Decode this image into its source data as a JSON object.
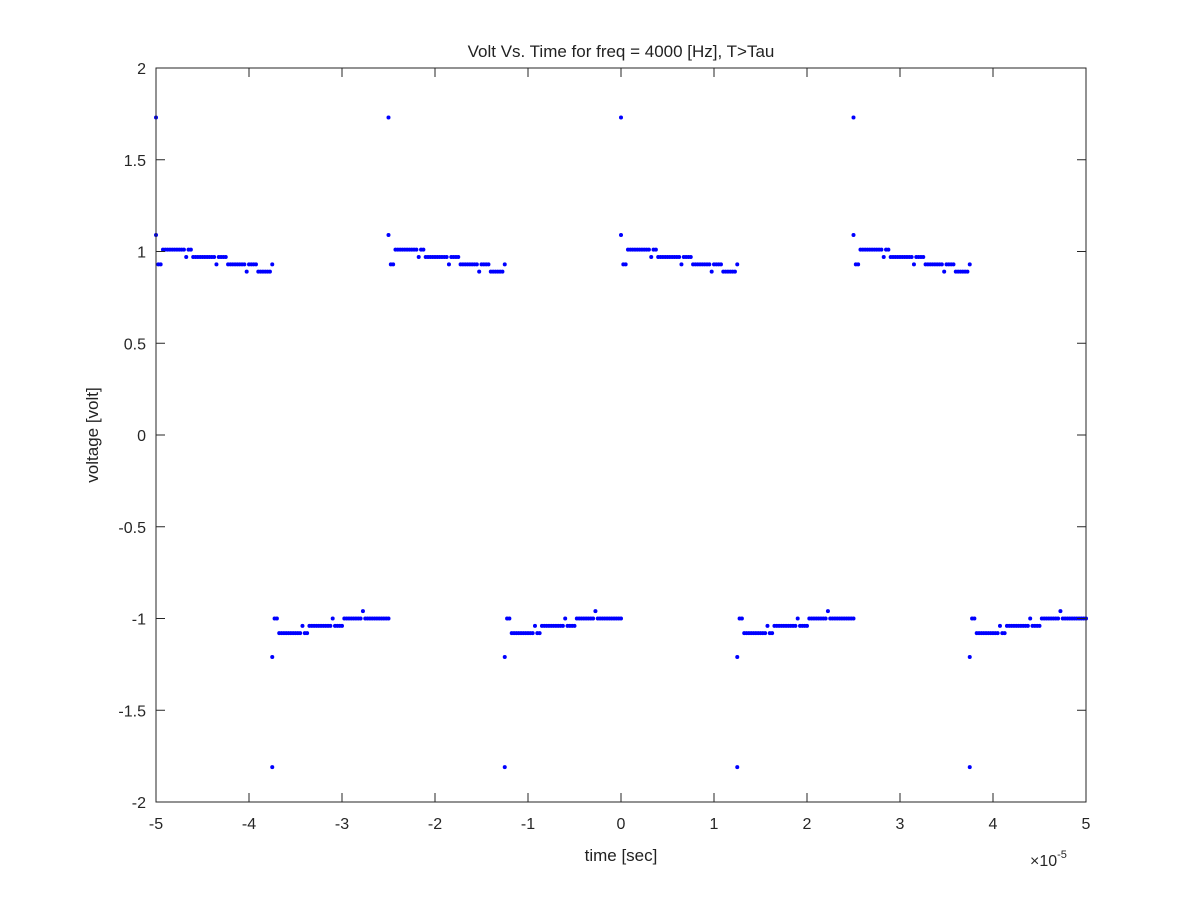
{
  "chart_data": {
    "type": "scatter",
    "title": "Volt Vs. Time for freq = 4000 [Hz], T>Tau",
    "xlabel": "time [sec]",
    "ylabel": "voltage [volt]",
    "x_multiplier_base": "×10",
    "x_multiplier_exp": "-5",
    "xlim": [
      -5e-05,
      5e-05
    ],
    "ylim": [
      -2,
      2
    ],
    "xticks": [
      -5,
      -4,
      -3,
      -2,
      -1,
      0,
      1,
      2,
      3,
      4,
      5
    ],
    "yticks": [
      2,
      1.5,
      1,
      0.5,
      0,
      -0.5,
      -1,
      -1.5,
      -2
    ],
    "xtick_labels": [
      "-5",
      "-4",
      "-3",
      "-2",
      "-1",
      "0",
      "1",
      "2",
      "3",
      "4",
      "5"
    ],
    "ytick_labels": [
      "2",
      "1.5",
      "1",
      "0.5",
      "0",
      "-0.5",
      "-1",
      "-1.5",
      "-2"
    ],
    "grid": false,
    "marker_color": "#0000ff",
    "period": 2.5e-05,
    "half_period": 1.25e-05,
    "high_half_cycle_profile": [
      [
        0.0,
        1.73
      ],
      [
        0.0,
        1.09
      ],
      [
        0.05,
        1.01
      ],
      [
        0.3,
        1.01
      ],
      [
        0.32,
        0.97
      ],
      [
        0.6,
        0.97
      ],
      [
        0.62,
        0.93
      ],
      [
        0.85,
        0.93
      ],
      [
        0.88,
        0.89
      ],
      [
        1.0,
        0.93
      ]
    ],
    "low_half_cycle_profile": [
      [
        0.0,
        -1.81
      ],
      [
        0.0,
        -1.21
      ],
      [
        0.05,
        -1.08
      ],
      [
        0.3,
        -1.08
      ],
      [
        0.32,
        -1.04
      ],
      [
        0.6,
        -1.04
      ],
      [
        0.62,
        -1.0
      ],
      [
        1.0,
        -1.0
      ]
    ],
    "series": [
      {
        "name": "",
        "segments": [
          {
            "level": "high",
            "t_start": -5e-05,
            "t_end": -3.75e-05
          },
          {
            "level": "low",
            "t_start": -3.75e-05,
            "t_end": -2.5e-05
          },
          {
            "level": "high",
            "t_start": -2.5e-05,
            "t_end": -1.25e-05
          },
          {
            "level": "low",
            "t_start": -1.25e-05,
            "t_end": 0
          },
          {
            "level": "high",
            "t_start": 0,
            "t_end": 1.25e-05
          },
          {
            "level": "low",
            "t_start": 1.25e-05,
            "t_end": 2.5e-05
          },
          {
            "level": "high",
            "t_start": 2.5e-05,
            "t_end": 3.75e-05
          },
          {
            "level": "low",
            "t_start": 3.75e-05,
            "t_end": 5e-05
          }
        ]
      }
    ]
  }
}
